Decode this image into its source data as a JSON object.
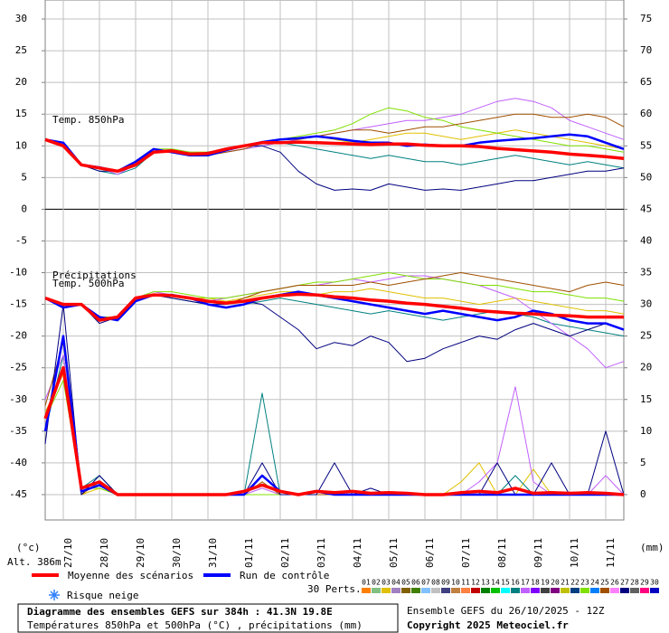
{
  "chart_data": {
    "type": "line",
    "title": "Diagramme des ensembles GEFS sur 384h : 41.3N 19.8E",
    "subtitle": "Températures 850hPa et 500hPa (°C) , précipitations (mm)",
    "run_label": "Ensemble GEFS du 26/10/2025 - 12Z",
    "copyright": "Copyright 2025 Meteociel.fr",
    "y_axis_label": "(°c)",
    "y2_axis_label": "(mm)",
    "altitude": "Alt. 386m",
    "snow_label": "Risque neige",
    "perturbations_label": "30 Perts.",
    "annotations": [
      "Temp. 850hPa",
      "Précipitations",
      "Temp. 500hPa"
    ],
    "categories": [
      null,
      "27/10",
      null,
      "28/10",
      null,
      "29/10",
      null,
      "30/10",
      null,
      "31/10",
      null,
      "01/11",
      null,
      "02/11",
      null,
      "03/11",
      null,
      "04/11",
      null,
      "05/11",
      null,
      "06/11",
      null,
      "07/11",
      null,
      "08/11",
      null,
      "09/11",
      null,
      "10/11",
      null,
      "11/11",
      null
    ],
    "ylim": [
      -49,
      33
    ],
    "yticks": [
      30,
      25,
      20,
      15,
      10,
      5,
      0,
      -5,
      -10,
      -15,
      -20,
      -25,
      -30,
      -35,
      -40,
      -45
    ],
    "y2lim": [
      -4,
      78
    ],
    "y2ticks": [
      75,
      70,
      65,
      60,
      55,
      50,
      45,
      40,
      35,
      30,
      25,
      20,
      15,
      10,
      5,
      0
    ],
    "grid": true,
    "series": [
      {
        "name": "Moyenne des scénarios",
        "color": "#ff0000",
        "t850": [
          11,
          10,
          7,
          6.5,
          6,
          7,
          9,
          9.2,
          8.7,
          8.8,
          9.5,
          10,
          10.5,
          10.5,
          10.6,
          10.5,
          10.4,
          10.3,
          10.2,
          10.3,
          10.3,
          10.1,
          10,
          10,
          9.9,
          9.6,
          9.4,
          9.2,
          9,
          8.7,
          8.5,
          8.3,
          8
        ],
        "t500": [
          -14,
          -15,
          -15,
          -17.5,
          -17,
          -14,
          -13.5,
          -13.6,
          -14,
          -14.5,
          -14.8,
          -14.5,
          -14,
          -13.6,
          -13.4,
          -13.5,
          -13.8,
          -14,
          -14.3,
          -14.5,
          -14.8,
          -15,
          -15.3,
          -15.6,
          -16,
          -16.2,
          -16.4,
          -16.5,
          -16.7,
          -16.8,
          -17,
          -17,
          -17
        ],
        "precip": [
          12,
          20,
          1,
          2,
          0,
          0,
          0,
          0,
          0,
          0,
          0,
          0.5,
          1.5,
          0.5,
          0,
          0.5,
          0.3,
          0.5,
          0.2,
          0.3,
          0.2,
          0,
          0,
          0.3,
          0.5,
          0.3,
          1,
          0.2,
          0.3,
          0.2,
          0.3,
          0.2,
          0
        ]
      },
      {
        "name": "Run de contrôle",
        "color": "#0000ff",
        "t850": [
          11,
          10.5,
          7,
          6.6,
          6,
          7.5,
          9.5,
          9,
          8.5,
          8.5,
          9.3,
          10,
          10.6,
          11,
          11.2,
          11.5,
          11.2,
          10.8,
          10.5,
          10.5,
          10,
          10.2,
          10,
          10,
          10.5,
          10.8,
          11,
          11.2,
          11.5,
          11.8,
          11.5,
          10.5,
          9.5
        ],
        "t500": [
          -14,
          -15.5,
          -15,
          -17,
          -17.5,
          -14.5,
          -13.5,
          -13.5,
          -14,
          -15,
          -15.5,
          -15,
          -14,
          -13.5,
          -13,
          -13.5,
          -14,
          -14.5,
          -15,
          -15.5,
          -16,
          -16.5,
          -16,
          -16.5,
          -17,
          -17.5,
          -17,
          -16,
          -16.5,
          -17.5,
          -18,
          -18,
          -19
        ],
        "precip": [
          10,
          25,
          0.5,
          1.5,
          0,
          0,
          0,
          0,
          0,
          0,
          0,
          0,
          3,
          0.5,
          0,
          0.5,
          0,
          0,
          0,
          0,
          0,
          0,
          0,
          0,
          0,
          0,
          0,
          0,
          0,
          0,
          0,
          0,
          0
        ]
      }
    ],
    "perturbations": [
      {
        "name": "01",
        "color": "#ff8000"
      },
      {
        "name": "02",
        "color": "#80c080"
      },
      {
        "name": "03",
        "color": "#e0c000",
        "t850": [
          11,
          10,
          7,
          6.5,
          6,
          7,
          9,
          9.5,
          9,
          9,
          9.5,
          10,
          10.5,
          10.5,
          11,
          11.5,
          11,
          10.5,
          11,
          11.5,
          12,
          12,
          11.5,
          11,
          11.5,
          12,
          12.5,
          12,
          11.5,
          11,
          10.5,
          10,
          9.5
        ],
        "t500": [
          -14,
          -15,
          -15,
          -17,
          -17,
          -14,
          -13.5,
          -13.5,
          -14,
          -14,
          -14.5,
          -14,
          -13.5,
          -13,
          -13,
          -13.5,
          -13,
          -13,
          -12.5,
          -13,
          -13.5,
          -14,
          -14,
          -14.5,
          -15,
          -14.5,
          -14,
          -14.5,
          -15,
          -15.5,
          -16,
          -16,
          -16.5
        ],
        "precip": [
          13,
          19,
          0,
          1,
          0,
          0,
          0,
          0,
          0,
          0,
          0,
          0,
          2,
          0,
          0,
          0,
          0,
          0,
          0,
          0,
          0,
          0,
          0,
          2,
          5,
          0,
          0,
          4,
          0,
          0,
          0,
          0,
          0
        ]
      },
      {
        "name": "04",
        "color": "#a080c0"
      },
      {
        "name": "05",
        "color": "#806000"
      },
      {
        "name": "06",
        "color": "#408000"
      },
      {
        "name": "07",
        "color": "#80c0ff"
      },
      {
        "name": "08",
        "color": "#c0c0c0"
      },
      {
        "name": "09",
        "color": "#404080"
      },
      {
        "name": "10",
        "color": "#c08040"
      },
      {
        "name": "11",
        "color": "#ff8040"
      },
      {
        "name": "12",
        "color": "#c00000"
      },
      {
        "name": "13",
        "color": "#008000"
      },
      {
        "name": "14",
        "color": "#00c000"
      },
      {
        "name": "15",
        "color": "#00ffff"
      },
      {
        "name": "16",
        "color": "#008080",
        "t850": [
          11,
          10,
          7,
          6,
          5.5,
          6.5,
          9,
          9,
          8.5,
          8.5,
          9,
          9.5,
          10,
          10.5,
          10,
          9.5,
          9,
          8.5,
          8,
          8.5,
          8,
          7.5,
          7.5,
          7,
          7.5,
          8,
          8.5,
          8,
          7.5,
          7,
          7.5,
          7,
          6.5
        ],
        "t500": [
          -14,
          -15,
          -15,
          -17,
          -17.5,
          -14.5,
          -13.5,
          -14,
          -14.5,
          -15,
          -15.5,
          -15,
          -14.5,
          -14,
          -14.5,
          -15,
          -15.5,
          -16,
          -16.5,
          -16,
          -16.5,
          -17,
          -17.5,
          -17,
          -16.5,
          -16,
          -16.5,
          -17,
          -18,
          -18.5,
          -19,
          -19.5,
          -20
        ],
        "precip": [
          10,
          22,
          1,
          3,
          0,
          0,
          0,
          0,
          0,
          0,
          0,
          0,
          16,
          0,
          0,
          0,
          0,
          0,
          0,
          0,
          0,
          0,
          0,
          0,
          0,
          0,
          3,
          0,
          0,
          0,
          0,
          0,
          0
        ]
      },
      {
        "name": "17",
        "color": "#c060ff",
        "t850": [
          11,
          10,
          7,
          6.5,
          5.5,
          7,
          9,
          9.5,
          9,
          8.5,
          9,
          9.5,
          10,
          10.5,
          11,
          11.5,
          12,
          12.5,
          13,
          13.5,
          14,
          14,
          14.5,
          15,
          16,
          17,
          17.5,
          17,
          16,
          14,
          13,
          12,
          11
        ],
        "t500": [
          -14,
          -15,
          -15,
          -17,
          -17,
          -14,
          -13,
          -13.5,
          -14,
          -14.5,
          -14,
          -13.5,
          -13,
          -12.5,
          -12,
          -12,
          -11.5,
          -11,
          -11.5,
          -11,
          -10.5,
          -10.5,
          -11,
          -11.5,
          -12,
          -13,
          -14,
          -16,
          -18,
          -20,
          -22,
          -25,
          -24
        ],
        "precip": [
          15,
          22,
          1,
          2,
          0,
          0,
          0,
          0,
          0,
          0,
          0,
          0,
          1,
          0,
          0,
          0,
          0,
          0,
          0,
          0,
          0,
          0,
          0,
          0,
          2,
          5,
          17,
          2,
          0,
          0,
          0,
          3,
          0
        ]
      },
      {
        "name": "18",
        "color": "#8000ff"
      },
      {
        "name": "19",
        "color": "#404040"
      },
      {
        "name": "20",
        "color": "#800080"
      },
      {
        "name": "21",
        "color": "#c0c000"
      },
      {
        "name": "22",
        "color": "#004080"
      },
      {
        "name": "23",
        "color": "#80e000",
        "t850": [
          11,
          10,
          7,
          6.5,
          6,
          7,
          9.5,
          9.5,
          9,
          9,
          9.5,
          10,
          10.5,
          11,
          11.5,
          12,
          12.5,
          13.5,
          15,
          16,
          15.5,
          14.5,
          14,
          13,
          12.5,
          12,
          11.5,
          11,
          10.5,
          10,
          10,
          9.5,
          9
        ],
        "t500": [
          -14,
          -15,
          -15,
          -17,
          -17,
          -14,
          -13,
          -13,
          -13.5,
          -14,
          -14,
          -13.5,
          -13,
          -12.5,
          -12,
          -11.5,
          -11.5,
          -11,
          -10.5,
          -10,
          -10.5,
          -11,
          -11,
          -11.5,
          -12,
          -12,
          -12.5,
          -13,
          -13,
          -13.5,
          -14,
          -14,
          -14.5
        ],
        "precip": [
          12,
          18,
          1,
          1,
          0,
          0,
          0,
          0,
          0,
          0,
          0,
          0,
          0,
          0,
          0,
          0,
          0,
          0,
          0,
          0,
          0,
          0,
          0,
          0,
          0,
          0,
          0,
          0,
          0,
          0,
          0,
          0,
          0
        ]
      },
      {
        "name": "24",
        "color": "#0080ff"
      },
      {
        "name": "25",
        "color": "#a05000",
        "t850": [
          11,
          10,
          7,
          6.5,
          6,
          7,
          9,
          9,
          8.5,
          8.5,
          9,
          9.5,
          10.5,
          11,
          11,
          11.5,
          12,
          12.5,
          12.5,
          12,
          12.5,
          13,
          13,
          13.5,
          14,
          14.5,
          15,
          15,
          14.5,
          14.5,
          15,
          14.5,
          13
        ],
        "t500": [
          -14,
          -15,
          -15,
          -17.5,
          -17,
          -14.5,
          -13.5,
          -13.5,
          -14,
          -14.5,
          -15,
          -14,
          -13,
          -12.5,
          -12,
          -12,
          -12,
          -12,
          -11.5,
          -12,
          -11.5,
          -11,
          -10.5,
          -10,
          -10.5,
          -11,
          -11.5,
          -12,
          -12.5,
          -13,
          -12,
          -11.5,
          -12
        ],
        "precip": [
          14,
          24,
          0,
          2,
          0,
          0,
          0,
          0,
          0,
          0,
          0,
          0,
          2,
          0,
          0,
          0,
          0,
          0,
          0,
          0,
          0,
          0,
          0,
          0,
          0,
          0,
          0,
          0,
          0,
          0,
          0,
          0,
          0
        ]
      },
      {
        "name": "26",
        "color": "#ff80ff"
      },
      {
        "name": "27",
        "color": "#000080",
        "t850": [
          11,
          10,
          7,
          6,
          6,
          7.5,
          9,
          9,
          8.5,
          9,
          9.5,
          10,
          10,
          9,
          6,
          4,
          3,
          3.2,
          3,
          4,
          3.5,
          3,
          3.2,
          3,
          3.5,
          4,
          4.5,
          4.5,
          5,
          5.5,
          6,
          6,
          6.5
        ],
        "t500": [
          -14,
          -15,
          -15,
          -18,
          -17,
          -14,
          -13.5,
          -14,
          -14.5,
          -15,
          -15,
          -14.5,
          -15,
          -17,
          -19,
          -22,
          -21,
          -21.5,
          -20,
          -21,
          -24,
          -23.5,
          -22,
          -21,
          -20,
          -20.5,
          -19,
          -18,
          -19,
          -20,
          -19,
          -18,
          -19
        ],
        "precip": [
          8,
          30,
          0,
          3,
          0,
          0,
          0,
          0,
          0,
          0,
          0,
          0,
          5,
          0,
          0,
          0,
          5,
          0,
          1,
          0,
          0,
          0,
          0,
          0,
          0,
          5,
          0,
          0,
          5,
          0,
          0,
          10,
          0
        ]
      },
      {
        "name": "28",
        "color": "#606060"
      },
      {
        "name": "29",
        "color": "#ff0080"
      },
      {
        "name": "30",
        "color": "#0000c0"
      }
    ]
  }
}
